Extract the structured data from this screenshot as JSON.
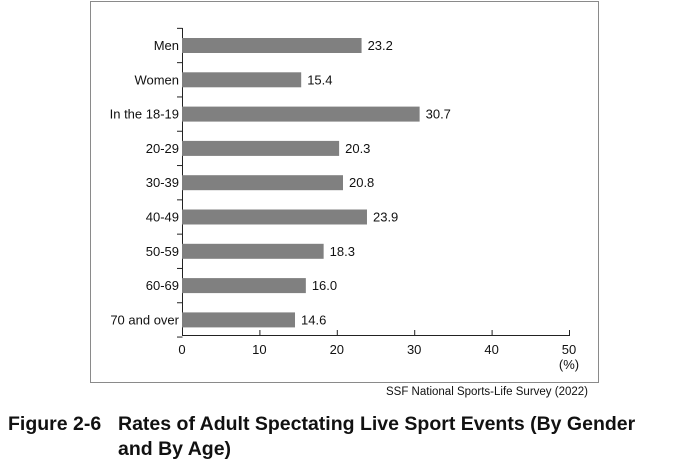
{
  "chart_data": {
    "type": "bar",
    "orientation": "horizontal",
    "categories": [
      "Men",
      "Women",
      "In the 18-19",
      "20-29",
      "30-39",
      "40-49",
      "50-59",
      "60-69",
      "70 and over"
    ],
    "values": [
      23.2,
      15.4,
      30.7,
      20.3,
      20.8,
      23.9,
      18.3,
      16.0,
      14.6
    ],
    "value_labels": [
      "23.2",
      "15.4",
      "30.7",
      "20.3",
      "20.8",
      "23.9",
      "18.3",
      "16.0",
      "14.6"
    ],
    "xlim": [
      0,
      50
    ],
    "xticks": [
      "0",
      "10",
      "20",
      "30",
      "40",
      "50"
    ],
    "xunit": "(%)",
    "bar_color": "#808080",
    "grid": false
  },
  "source": "SSF National Sports-Life Survey (2022)",
  "caption": {
    "number": "Figure 2-6",
    "line1": "Rates of Adult Spectating Live Sport Events (By Gender",
    "line2": "and By Age)"
  }
}
